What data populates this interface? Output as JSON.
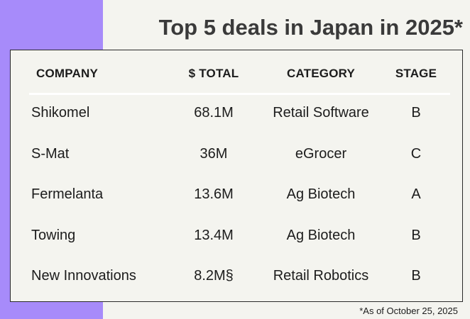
{
  "title": "Top 5 deals in Japan in 2025*",
  "footnote": "*As of October 25, 2025",
  "colors": {
    "accent": "#a78bfa",
    "background": "#f4f4ef",
    "title": "#3a3a3a"
  },
  "chart_data": {
    "type": "table",
    "title": "Top 5 deals in Japan in 2025*",
    "columns": [
      "COMPANY",
      "$ TOTAL",
      "CATEGORY",
      "STAGE"
    ],
    "rows": [
      {
        "company": "Shikomel",
        "total": "68.1M",
        "category": "Retail Software",
        "stage": "B"
      },
      {
        "company": "S-Mat",
        "total": "36M",
        "category": "eGrocer",
        "stage": "C"
      },
      {
        "company": "Fermelanta",
        "total": "13.6M",
        "category": "Ag Biotech",
        "stage": "A"
      },
      {
        "company": "Towing",
        "total": "13.4M",
        "category": "Ag Biotech",
        "stage": "B"
      },
      {
        "company": "New Innovations",
        "total": "8.2M§",
        "category": "Retail Robotics",
        "stage": "B"
      }
    ]
  }
}
